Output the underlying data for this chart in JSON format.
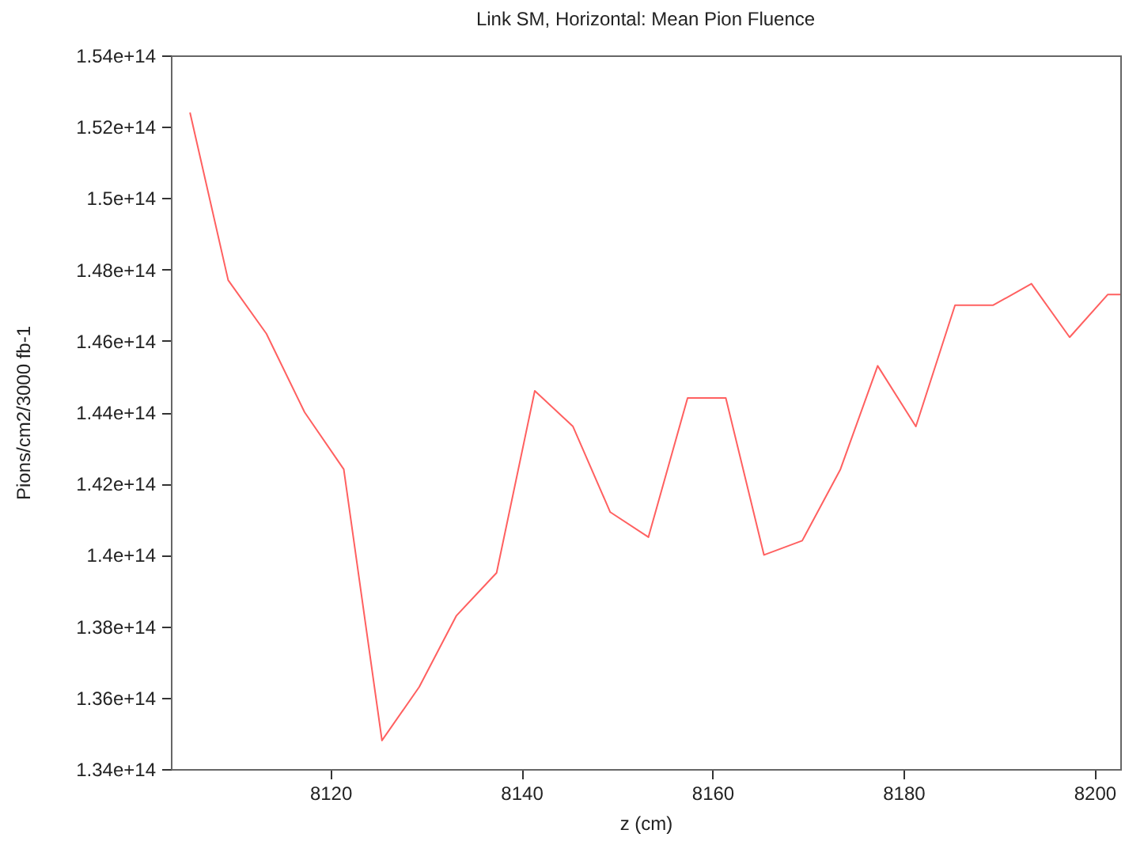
{
  "chart_data": {
    "type": "line",
    "title": "Link SM, Horizontal: Mean Pion Fluence",
    "xlabel": "z (cm)",
    "ylabel": "Pions/cm2/3000 fb-1",
    "x": [
      8105.3,
      8109.3,
      8113.3,
      8117.3,
      8121.4,
      8125.4,
      8129.3,
      8133.2,
      8137.4,
      8141.4,
      8145.4,
      8149.3,
      8153.3,
      8157.4,
      8161.4,
      8165.4,
      8169.4,
      8173.4,
      8177.3,
      8181.3,
      8185.4,
      8189.4,
      8193.4,
      8197.4,
      8201.4,
      8202.7
    ],
    "series": [
      {
        "color": "#ff6060",
        "values": [
          152400000000000.0,
          147700000000000.0,
          146200000000000.0,
          144000000000000.0,
          142400000000000.0,
          134800000000000.0,
          136300000000000.0,
          138300000000000.0,
          139500000000000.0,
          144600000000000.0,
          143600000000000.0,
          141200000000000.0,
          140500000000000.0,
          144400000000000.0,
          144400000000000.0,
          140000000000000.0,
          140400000000000.0,
          142400000000000.0,
          145300000000000.0,
          143600000000000.0,
          147000000000000.0,
          147000000000000.0,
          147600000000000.0,
          146100000000000.0,
          147300000000000.0,
          147300000000000.0
        ]
      }
    ],
    "xlim": [
      8103.3,
      8202.7
    ],
    "xticks": [
      8120,
      8140,
      8160,
      8180,
      8200
    ],
    "ylim": [
      134000000000000.0,
      154000000000000.0
    ],
    "yticks": [
      {
        "value": 134000000000000.0,
        "label": "1.34e+14"
      },
      {
        "value": 136000000000000.0,
        "label": "1.36e+14"
      },
      {
        "value": 138000000000000.0,
        "label": "1.38e+14"
      },
      {
        "value": 140000000000000.0,
        "label": "1.4e+14"
      },
      {
        "value": 142000000000000.0,
        "label": "1.42e+14"
      },
      {
        "value": 144000000000000.0,
        "label": "1.44e+14"
      },
      {
        "value": 146000000000000.0,
        "label": "1.46e+14"
      },
      {
        "value": 148000000000000.0,
        "label": "1.48e+14"
      },
      {
        "value": 150000000000000.0,
        "label": "1.5e+14"
      },
      {
        "value": 152000000000000.0,
        "label": "1.52e+14"
      },
      {
        "value": 154000000000000.0,
        "label": "1.54e+14"
      }
    ],
    "grid": false,
    "legend": false
  }
}
